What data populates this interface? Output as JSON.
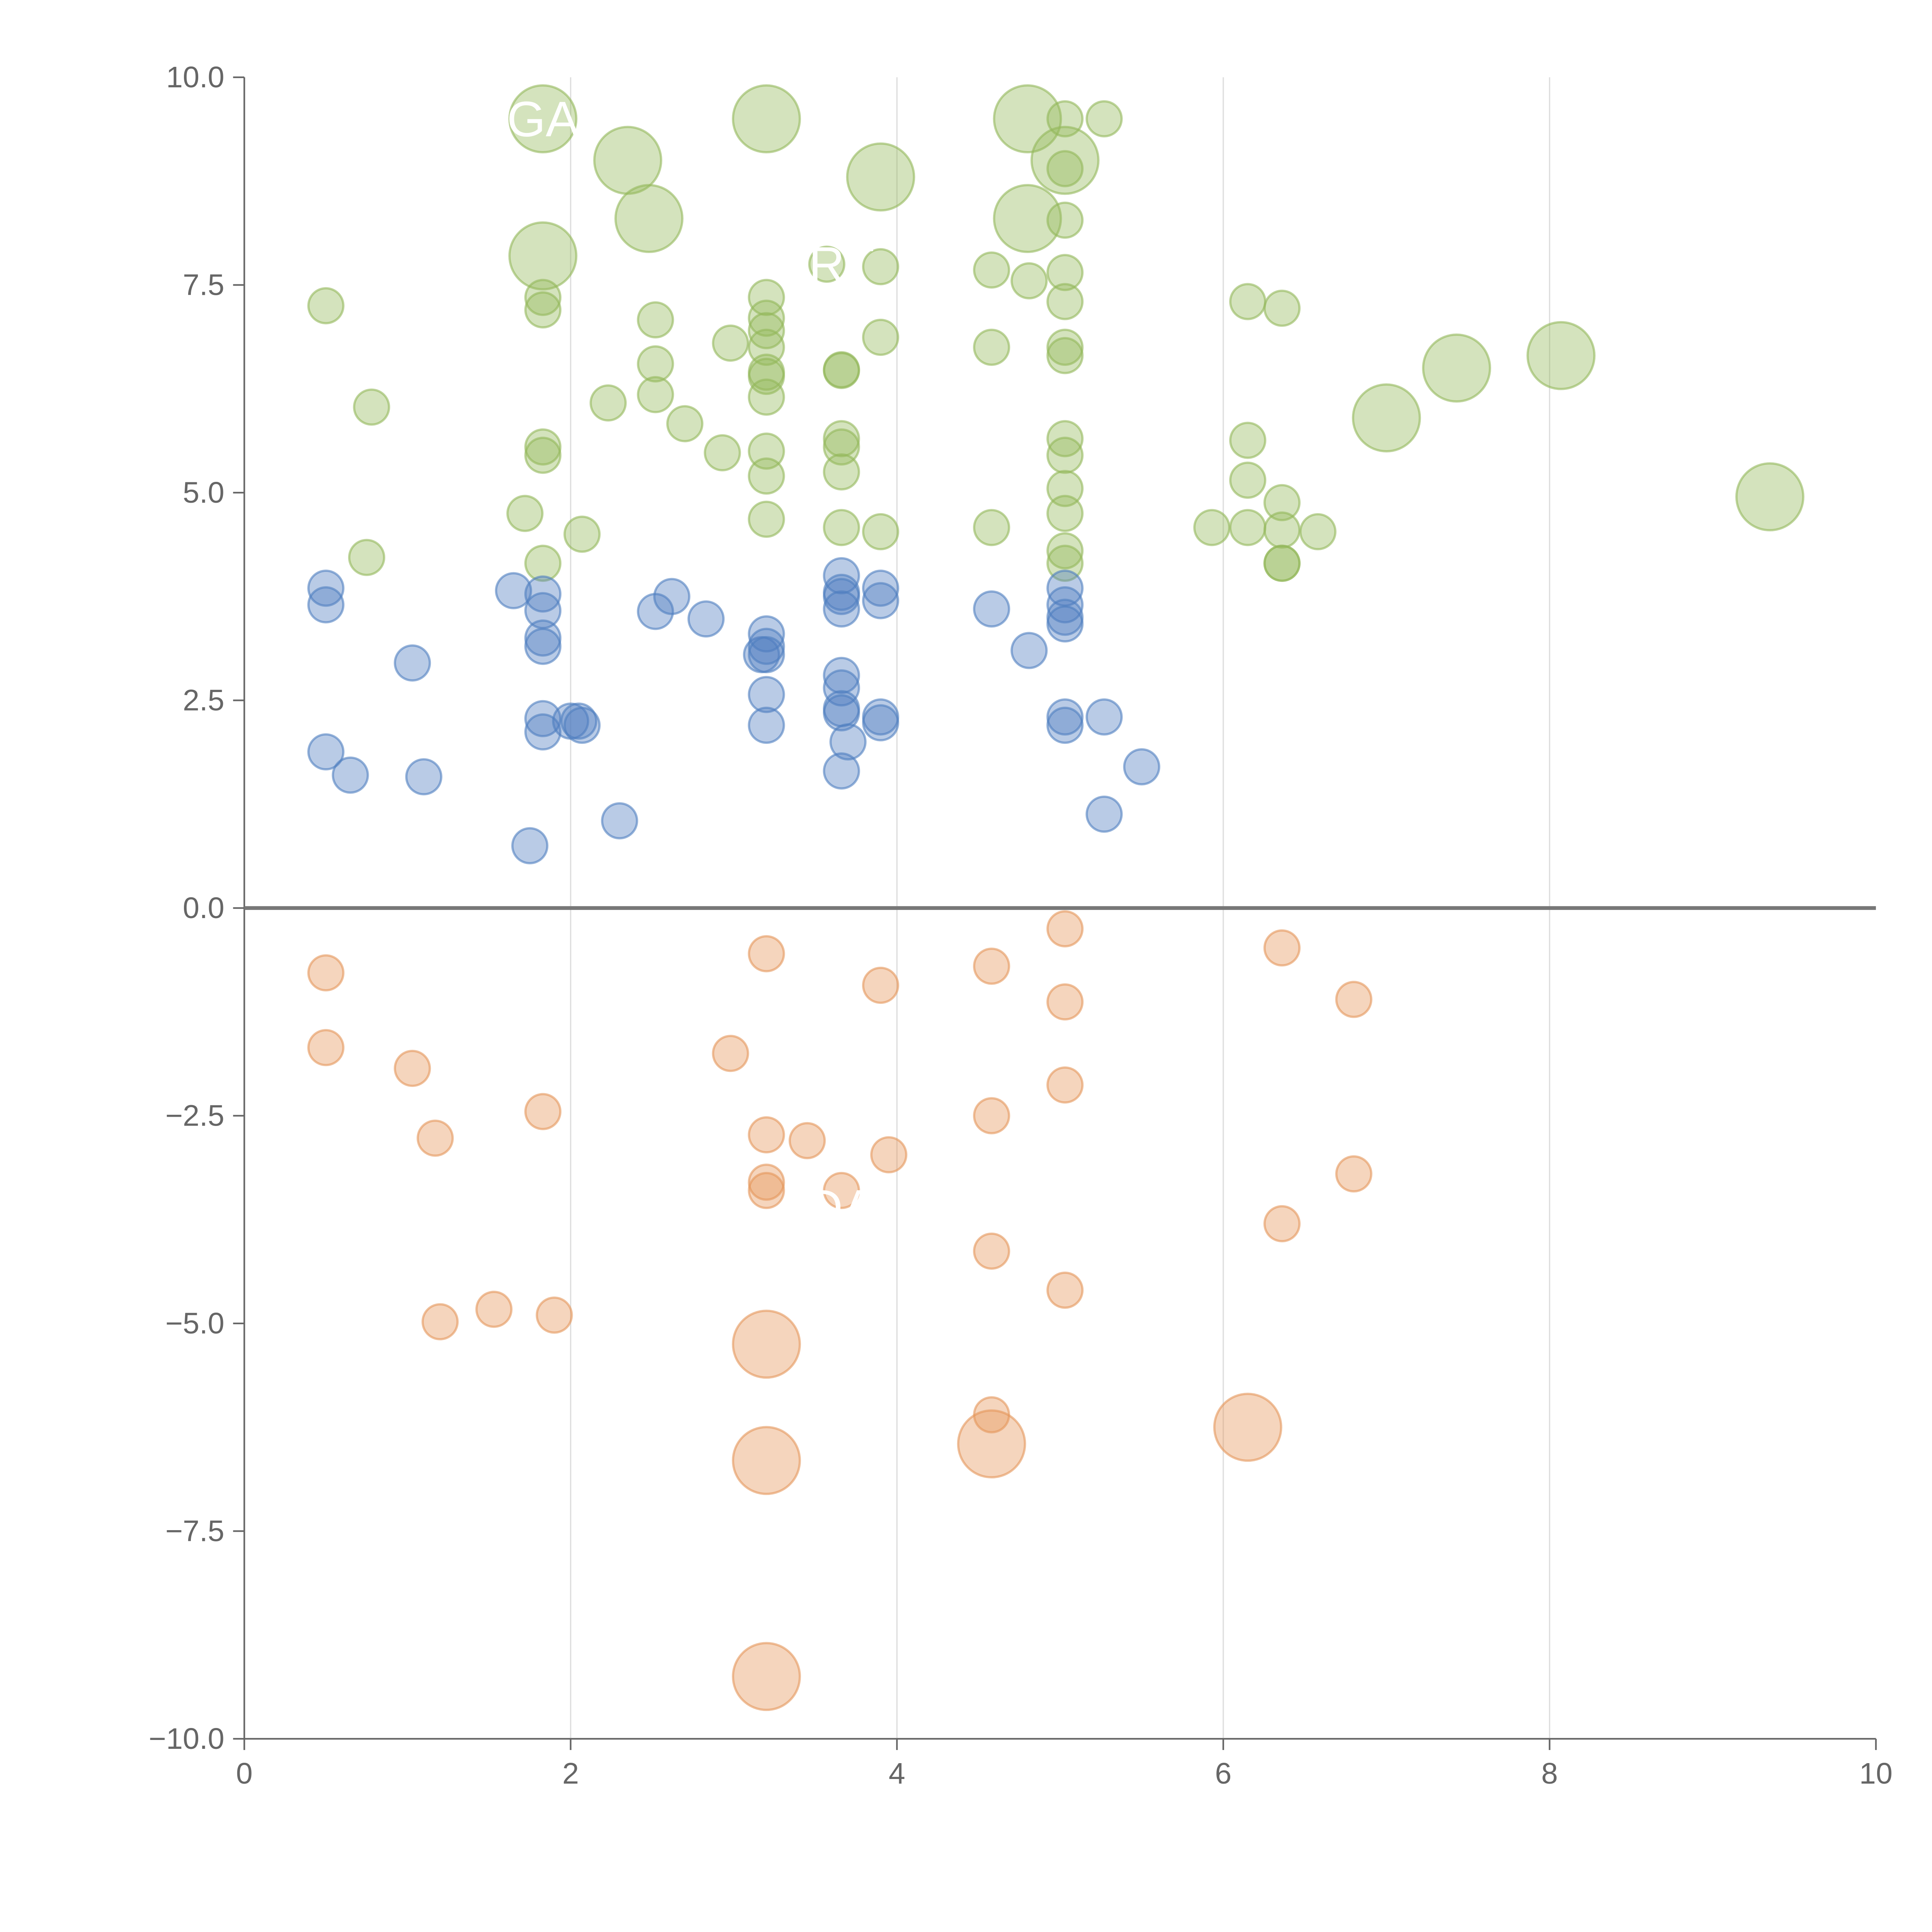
{
  "chart_data": {
    "type": "scatter",
    "title": "",
    "xlabel": "",
    "ylabel": "",
    "xlim": [
      0,
      10
    ],
    "ylim": [
      -10,
      10
    ],
    "x_ticks": [
      "0",
      "2",
      "4",
      "6",
      "8",
      "10"
    ],
    "y_ticks": [
      "−10.0",
      "−7.5",
      "−5.0",
      "−2.5",
      "0.0",
      "2.5",
      "5.0",
      "7.5",
      "10.0"
    ],
    "vertical_gridlines_at": [
      2,
      4,
      6,
      8
    ],
    "zero_line": true,
    "colors": {
      "green": "#93b85a",
      "blue": "#4f7ec0",
      "orange": "#e5965a"
    },
    "series": [
      {
        "color_key": "green",
        "points": [
          [
            1.83,
            9.5,
            3.2
          ],
          [
            2.35,
            9.0,
            3.2
          ],
          [
            2.48,
            8.3,
            3.2
          ],
          [
            1.83,
            7.85,
            3.2
          ],
          [
            3.2,
            9.5,
            3.2
          ],
          [
            3.9,
            8.8,
            3.2
          ],
          [
            4.8,
            9.5,
            3.2
          ],
          [
            4.8,
            8.3,
            3.2
          ],
          [
            5.03,
            9.0,
            3.2
          ],
          [
            7.0,
            5.9,
            3.2
          ],
          [
            7.43,
            6.5,
            3.2
          ],
          [
            8.07,
            6.65,
            3.2
          ],
          [
            9.35,
            4.95,
            3.2
          ],
          [
            5.03,
            9.5,
            1
          ],
          [
            5.27,
            9.5,
            1
          ],
          [
            5.03,
            8.9,
            1
          ],
          [
            5.03,
            8.28,
            1
          ],
          [
            5.03,
            7.65,
            1
          ],
          [
            5.03,
            7.3,
            1
          ],
          [
            5.03,
            6.75,
            1
          ],
          [
            5.03,
            6.65,
            1
          ],
          [
            5.03,
            5.65,
            1
          ],
          [
            5.03,
            5.45,
            1
          ],
          [
            5.03,
            5.05,
            1
          ],
          [
            5.03,
            4.75,
            1
          ],
          [
            5.03,
            4.3,
            1
          ],
          [
            5.03,
            4.15,
            1
          ],
          [
            0.5,
            7.25,
            1
          ],
          [
            0.78,
            6.03,
            1
          ],
          [
            0.75,
            4.22,
            1
          ],
          [
            1.72,
            4.75,
            1
          ],
          [
            1.83,
            7.35,
            1
          ],
          [
            1.83,
            7.2,
            1
          ],
          [
            1.83,
            5.55,
            1
          ],
          [
            1.83,
            5.45,
            1
          ],
          [
            1.83,
            4.15,
            1
          ],
          [
            2.07,
            4.5,
            1
          ],
          [
            2.23,
            6.08,
            1
          ],
          [
            2.52,
            7.08,
            1
          ],
          [
            2.52,
            6.55,
            1
          ],
          [
            2.52,
            6.18,
            1
          ],
          [
            2.7,
            5.83,
            1
          ],
          [
            2.93,
            5.48,
            1
          ],
          [
            2.98,
            6.8,
            1
          ],
          [
            3.2,
            7.35,
            1
          ],
          [
            3.2,
            7.1,
            1
          ],
          [
            3.2,
            6.95,
            1
          ],
          [
            3.2,
            6.75,
            1
          ],
          [
            3.2,
            6.45,
            1
          ],
          [
            3.2,
            6.4,
            1
          ],
          [
            3.2,
            6.15,
            1
          ],
          [
            3.2,
            5.5,
            1
          ],
          [
            3.2,
            5.2,
            1
          ],
          [
            3.2,
            4.68,
            1
          ],
          [
            3.57,
            7.75,
            1
          ],
          [
            3.66,
            6.48,
            1
          ],
          [
            3.66,
            6.47,
            1
          ],
          [
            3.66,
            5.65,
            1
          ],
          [
            3.66,
            5.55,
            1
          ],
          [
            3.66,
            5.25,
            1
          ],
          [
            3.66,
            4.58,
            1
          ],
          [
            3.9,
            7.72,
            1
          ],
          [
            3.9,
            6.87,
            1
          ],
          [
            3.9,
            4.53,
            1
          ],
          [
            4.58,
            7.68,
            1
          ],
          [
            4.58,
            6.75,
            1
          ],
          [
            4.58,
            4.58,
            1
          ],
          [
            4.81,
            7.55,
            1
          ],
          [
            5.93,
            4.58,
            1
          ],
          [
            6.15,
            7.3,
            1
          ],
          [
            6.15,
            5.63,
            1
          ],
          [
            6.15,
            5.15,
            1
          ],
          [
            6.15,
            4.58,
            1
          ],
          [
            6.36,
            7.22,
            1
          ],
          [
            6.36,
            4.88,
            1
          ],
          [
            6.36,
            4.55,
            1
          ],
          [
            6.36,
            4.15,
            1
          ],
          [
            6.36,
            4.15,
            1
          ],
          [
            6.58,
            4.53,
            1
          ]
        ]
      },
      {
        "color_key": "blue",
        "points": [
          [
            0.5,
            3.85,
            1
          ],
          [
            0.5,
            3.65,
            1
          ],
          [
            0.5,
            1.88,
            1
          ],
          [
            0.65,
            1.6,
            1
          ],
          [
            1.03,
            2.95,
            1
          ],
          [
            1.1,
            1.58,
            1
          ],
          [
            1.65,
            3.82,
            1
          ],
          [
            1.75,
            0.75,
            1
          ],
          [
            1.83,
            3.78,
            1
          ],
          [
            1.83,
            3.58,
            1
          ],
          [
            1.83,
            3.25,
            1
          ],
          [
            1.83,
            3.15,
            1
          ],
          [
            1.83,
            2.28,
            1
          ],
          [
            1.83,
            2.12,
            1
          ],
          [
            2.0,
            2.25,
            1
          ],
          [
            2.05,
            2.25,
            1
          ],
          [
            2.07,
            2.2,
            1
          ],
          [
            2.3,
            1.05,
            1
          ],
          [
            2.52,
            3.57,
            1
          ],
          [
            2.62,
            3.75,
            1
          ],
          [
            2.83,
            3.48,
            1
          ],
          [
            3.17,
            3.05,
            1
          ],
          [
            3.2,
            3.3,
            1
          ],
          [
            3.2,
            3.15,
            1
          ],
          [
            3.2,
            3.05,
            1
          ],
          [
            3.2,
            2.57,
            1
          ],
          [
            3.2,
            2.2,
            1
          ],
          [
            3.66,
            4.0,
            1
          ],
          [
            3.66,
            3.8,
            1
          ],
          [
            3.66,
            3.75,
            1
          ],
          [
            3.66,
            3.6,
            1
          ],
          [
            3.66,
            2.8,
            1
          ],
          [
            3.66,
            2.65,
            1
          ],
          [
            3.66,
            2.4,
            1
          ],
          [
            3.66,
            2.35,
            1
          ],
          [
            3.66,
            1.65,
            1
          ],
          [
            3.7,
            2.0,
            1
          ],
          [
            3.9,
            3.85,
            1
          ],
          [
            3.9,
            3.7,
            1
          ],
          [
            3.9,
            2.3,
            1
          ],
          [
            3.9,
            2.23,
            1
          ],
          [
            4.58,
            3.6,
            1
          ],
          [
            4.81,
            3.1,
            1
          ],
          [
            5.03,
            3.85,
            1
          ],
          [
            5.03,
            3.65,
            1
          ],
          [
            5.03,
            3.5,
            1
          ],
          [
            5.03,
            3.42,
            1
          ],
          [
            5.03,
            2.3,
            1
          ],
          [
            5.03,
            2.2,
            1
          ],
          [
            5.27,
            2.3,
            1
          ],
          [
            5.27,
            1.13,
            1
          ],
          [
            5.5,
            1.7,
            1
          ]
        ]
      },
      {
        "color_key": "orange",
        "points": [
          [
            3.2,
            -5.25,
            3.2
          ],
          [
            3.2,
            -6.65,
            3.2
          ],
          [
            3.2,
            -9.25,
            3.2
          ],
          [
            4.58,
            -6.45,
            3.2
          ],
          [
            6.15,
            -6.25,
            3.2
          ],
          [
            0.5,
            -0.78,
            1
          ],
          [
            0.5,
            -1.68,
            1
          ],
          [
            1.03,
            -1.93,
            1
          ],
          [
            1.17,
            -2.77,
            1
          ],
          [
            1.2,
            -4.98,
            1
          ],
          [
            1.53,
            -4.83,
            1
          ],
          [
            1.83,
            -2.45,
            1
          ],
          [
            1.9,
            -4.9,
            1
          ],
          [
            2.98,
            -1.75,
            1
          ],
          [
            3.2,
            -0.55,
            1
          ],
          [
            3.2,
            -2.73,
            1
          ],
          [
            3.2,
            -3.3,
            1
          ],
          [
            3.2,
            -3.4,
            1
          ],
          [
            3.45,
            -2.8,
            1
          ],
          [
            3.66,
            -3.4,
            1
          ],
          [
            3.9,
            -0.93,
            1
          ],
          [
            3.95,
            -2.97,
            1
          ],
          [
            4.58,
            -0.7,
            1
          ],
          [
            4.58,
            -2.5,
            1
          ],
          [
            4.58,
            -4.13,
            1
          ],
          [
            4.58,
            -6.1,
            1
          ],
          [
            5.03,
            -0.25,
            1
          ],
          [
            5.03,
            -1.13,
            1
          ],
          [
            5.03,
            -2.13,
            1
          ],
          [
            5.03,
            -4.6,
            1
          ],
          [
            6.36,
            -0.48,
            1
          ],
          [
            6.36,
            -3.8,
            1
          ],
          [
            6.8,
            -1.1,
            1
          ],
          [
            6.8,
            -3.2,
            1
          ]
        ]
      }
    ],
    "labels": [
      {
        "text": "GA",
        "x": 1.83,
        "y": 9.5,
        "color": "#ffffff"
      },
      {
        "text": "RT",
        "x": 3.66,
        "y": 7.75,
        "color": "#ffffff"
      },
      {
        "text": "DA",
        "x": 3.66,
        "y": -3.6,
        "color": "#ffffff"
      }
    ]
  }
}
